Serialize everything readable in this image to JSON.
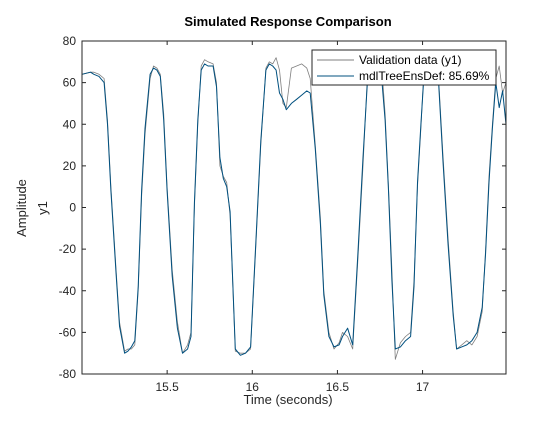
{
  "chart_data": {
    "type": "line",
    "title": "Simulated Response Comparison",
    "xlabel": "Time (seconds)",
    "ylabel_outer": "Amplitude",
    "ylabel_inner": "y1",
    "xlim": [
      15.0,
      17.49
    ],
    "ylim": [
      -80,
      80
    ],
    "xticks": [
      15.5,
      16,
      16.5,
      17
    ],
    "xtick_labels": [
      "15.5",
      "16",
      "16.5",
      "17"
    ],
    "yticks": [
      -80,
      -60,
      -40,
      -20,
      0,
      20,
      40,
      60,
      80
    ],
    "ytick_labels": [
      "-80",
      "-60",
      "-40",
      "-20",
      "0",
      "20",
      "40",
      "60",
      "80"
    ],
    "grid": false,
    "legend_position": "top-right",
    "series": [
      {
        "name": "Validation data (y1)",
        "color": "#7f7f7f",
        "x": [
          15.0,
          15.05,
          15.07,
          15.1,
          15.13,
          15.15,
          15.17,
          15.2,
          15.22,
          15.25,
          15.27,
          15.29,
          15.31,
          15.33,
          15.35,
          15.37,
          15.4,
          15.42,
          15.44,
          15.46,
          15.48,
          15.5,
          15.53,
          15.56,
          15.59,
          15.62,
          15.64,
          15.66,
          15.68,
          15.7,
          15.72,
          15.74,
          15.77,
          15.79,
          15.81,
          15.83,
          15.85,
          15.87,
          15.9,
          15.93,
          15.96,
          15.99,
          16.02,
          16.05,
          16.08,
          16.1,
          16.12,
          16.14,
          16.16,
          16.18,
          16.2,
          16.23,
          16.26,
          16.29,
          16.32,
          16.34,
          16.37,
          16.4,
          16.42,
          16.45,
          16.48,
          16.51,
          16.53,
          16.56,
          16.59,
          16.62,
          16.65,
          16.68,
          16.71,
          16.73,
          16.76,
          16.78,
          16.8,
          16.82,
          16.84,
          16.87,
          16.9,
          16.93,
          16.95,
          16.97,
          16.99,
          17.01,
          17.03,
          17.06,
          17.09,
          17.12,
          17.15,
          17.18,
          17.2,
          17.23,
          17.26,
          17.29,
          17.32,
          17.35,
          17.37,
          17.39,
          17.41,
          17.43,
          17.45,
          17.47,
          17.49
        ],
        "y": [
          64,
          65,
          65,
          64,
          62,
          42,
          10,
          -30,
          -55,
          -69,
          -68,
          -68,
          -66,
          -40,
          5,
          35,
          62,
          68,
          67,
          64,
          45,
          10,
          -30,
          -55,
          -70,
          -66,
          -60,
          0,
          40,
          68,
          71,
          70,
          69,
          60,
          20,
          15,
          12,
          -4,
          -69,
          -70,
          -70,
          -68,
          -20,
          30,
          67,
          70,
          69,
          72,
          66,
          50,
          48,
          67,
          68,
          69,
          67,
          62,
          30,
          -5,
          -40,
          -60,
          -68,
          -65,
          -60,
          -62,
          -68,
          -25,
          20,
          70,
          71,
          70,
          68,
          45,
          10,
          -30,
          -73,
          -65,
          -62,
          -60,
          -35,
          10,
          38,
          70,
          70,
          71,
          68,
          25,
          -15,
          -50,
          -68,
          -66,
          -64,
          -66,
          -62,
          -50,
          -20,
          15,
          40,
          62,
          68,
          55,
          60
        ]
      },
      {
        "name": "mdlTreeEnsDef: 85.69%",
        "color": "#00507f",
        "x": [
          15.0,
          15.05,
          15.07,
          15.1,
          15.13,
          15.15,
          15.17,
          15.2,
          15.22,
          15.25,
          15.27,
          15.29,
          15.31,
          15.33,
          15.35,
          15.37,
          15.4,
          15.42,
          15.44,
          15.46,
          15.48,
          15.5,
          15.53,
          15.56,
          15.59,
          15.62,
          15.64,
          15.66,
          15.68,
          15.7,
          15.72,
          15.74,
          15.77,
          15.79,
          15.81,
          15.83,
          15.85,
          15.87,
          15.9,
          15.93,
          15.96,
          15.99,
          16.02,
          16.05,
          16.08,
          16.1,
          16.12,
          16.14,
          16.16,
          16.18,
          16.2,
          16.23,
          16.26,
          16.29,
          16.32,
          16.34,
          16.37,
          16.4,
          16.42,
          16.45,
          16.48,
          16.51,
          16.53,
          16.56,
          16.59,
          16.62,
          16.65,
          16.68,
          16.71,
          16.73,
          16.76,
          16.78,
          16.8,
          16.82,
          16.84,
          16.87,
          16.9,
          16.93,
          16.95,
          16.97,
          16.99,
          17.01,
          17.03,
          17.06,
          17.09,
          17.12,
          17.15,
          17.18,
          17.2,
          17.23,
          17.26,
          17.29,
          17.32,
          17.35,
          17.37,
          17.39,
          17.41,
          17.43,
          17.45,
          17.47,
          17.49
        ],
        "y": [
          64,
          65,
          64,
          63,
          60,
          40,
          8,
          -32,
          -57,
          -70,
          -69,
          -67,
          -64,
          -38,
          8,
          38,
          64,
          67,
          66,
          63,
          42,
          8,
          -33,
          -58,
          -70,
          -68,
          -62,
          2,
          42,
          66,
          69,
          68,
          68,
          58,
          24,
          14,
          10,
          -2,
          -68,
          -71,
          -70,
          -67,
          -18,
          32,
          66,
          69,
          68,
          66,
          55,
          52,
          47,
          50,
          52,
          54,
          56,
          55,
          28,
          -8,
          -42,
          -62,
          -67,
          -66,
          -62,
          -58,
          -66,
          -22,
          24,
          66,
          68,
          67,
          62,
          42,
          8,
          -35,
          -68,
          -67,
          -64,
          -62,
          -38,
          12,
          40,
          66,
          68,
          67,
          66,
          22,
          -18,
          -52,
          -68,
          -67,
          -66,
          -64,
          -60,
          -48,
          -22,
          12,
          38,
          60,
          48,
          56,
          40
        ]
      }
    ]
  }
}
